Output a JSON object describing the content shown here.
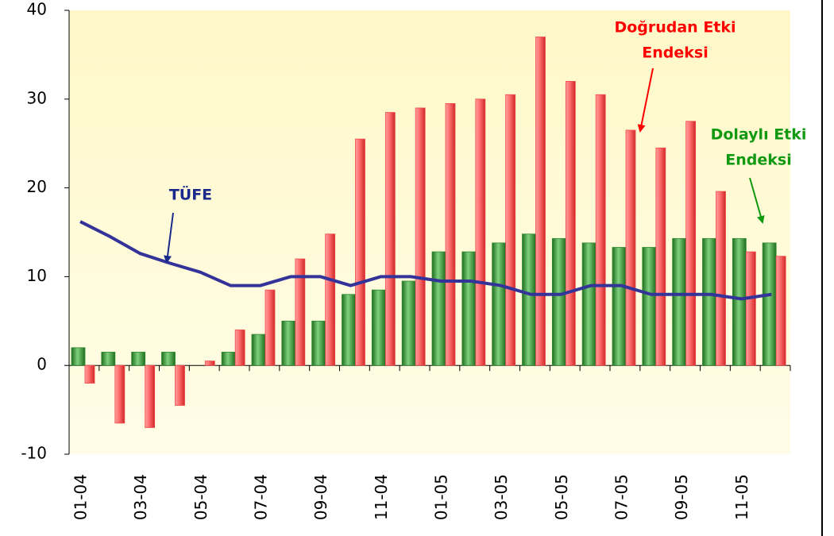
{
  "chart_data": {
    "type": "bar_line",
    "categories": [
      "01-04",
      null,
      "03-04",
      null,
      "05-04",
      null,
      "07-04",
      null,
      "09-04",
      null,
      "11-04",
      null,
      "01-05",
      null,
      "03-05",
      null,
      "05-05",
      null,
      "07-05",
      null,
      "09-05",
      null,
      "11-05",
      null
    ],
    "series": [
      {
        "color": "#2e8b2e",
        "kind": "bar",
        "values": [
          2,
          1.5,
          1.5,
          1.5,
          0,
          1.5,
          3.5,
          5,
          5,
          8,
          8.5,
          9.5,
          12.8,
          12.8,
          13.8,
          14.8,
          14.3,
          13.8,
          13.3,
          13.3,
          14.3,
          14.3,
          14.3,
          13.8
        ]
      },
      {
        "color": "#f04848",
        "kind": "bar",
        "values": [
          -2,
          -6.5,
          -7,
          -4.5,
          0.5,
          4,
          8.5,
          12,
          14.8,
          25.5,
          28.5,
          29,
          29.5,
          30,
          30.5,
          37,
          32,
          30.5,
          26.5,
          24.5,
          27.5,
          19.6,
          12.8,
          12.3
        ]
      },
      {
        "color": "#333399",
        "kind": "line",
        "values": [
          16.2,
          14.5,
          12.6,
          11.5,
          10.5,
          9,
          9,
          10,
          10,
          9,
          10,
          10,
          9.5,
          9.5,
          9,
          8,
          8,
          9,
          9,
          8,
          8,
          8,
          7.5,
          8
        ]
      }
    ],
    "annotations": [
      {
        "lines": [
          "TÜFE"
        ],
        "color": "#1a2a8c"
      },
      {
        "lines": [
          "Doğrudan Etki",
          "Endeksi"
        ],
        "color": "#ff0000"
      },
      {
        "lines": [
          "Dolaylı Etki",
          "Endeksi"
        ],
        "color": "#119911"
      }
    ],
    "ylim": [
      -10,
      40
    ],
    "yticks": [
      -10,
      0,
      10,
      20,
      30,
      40
    ]
  }
}
